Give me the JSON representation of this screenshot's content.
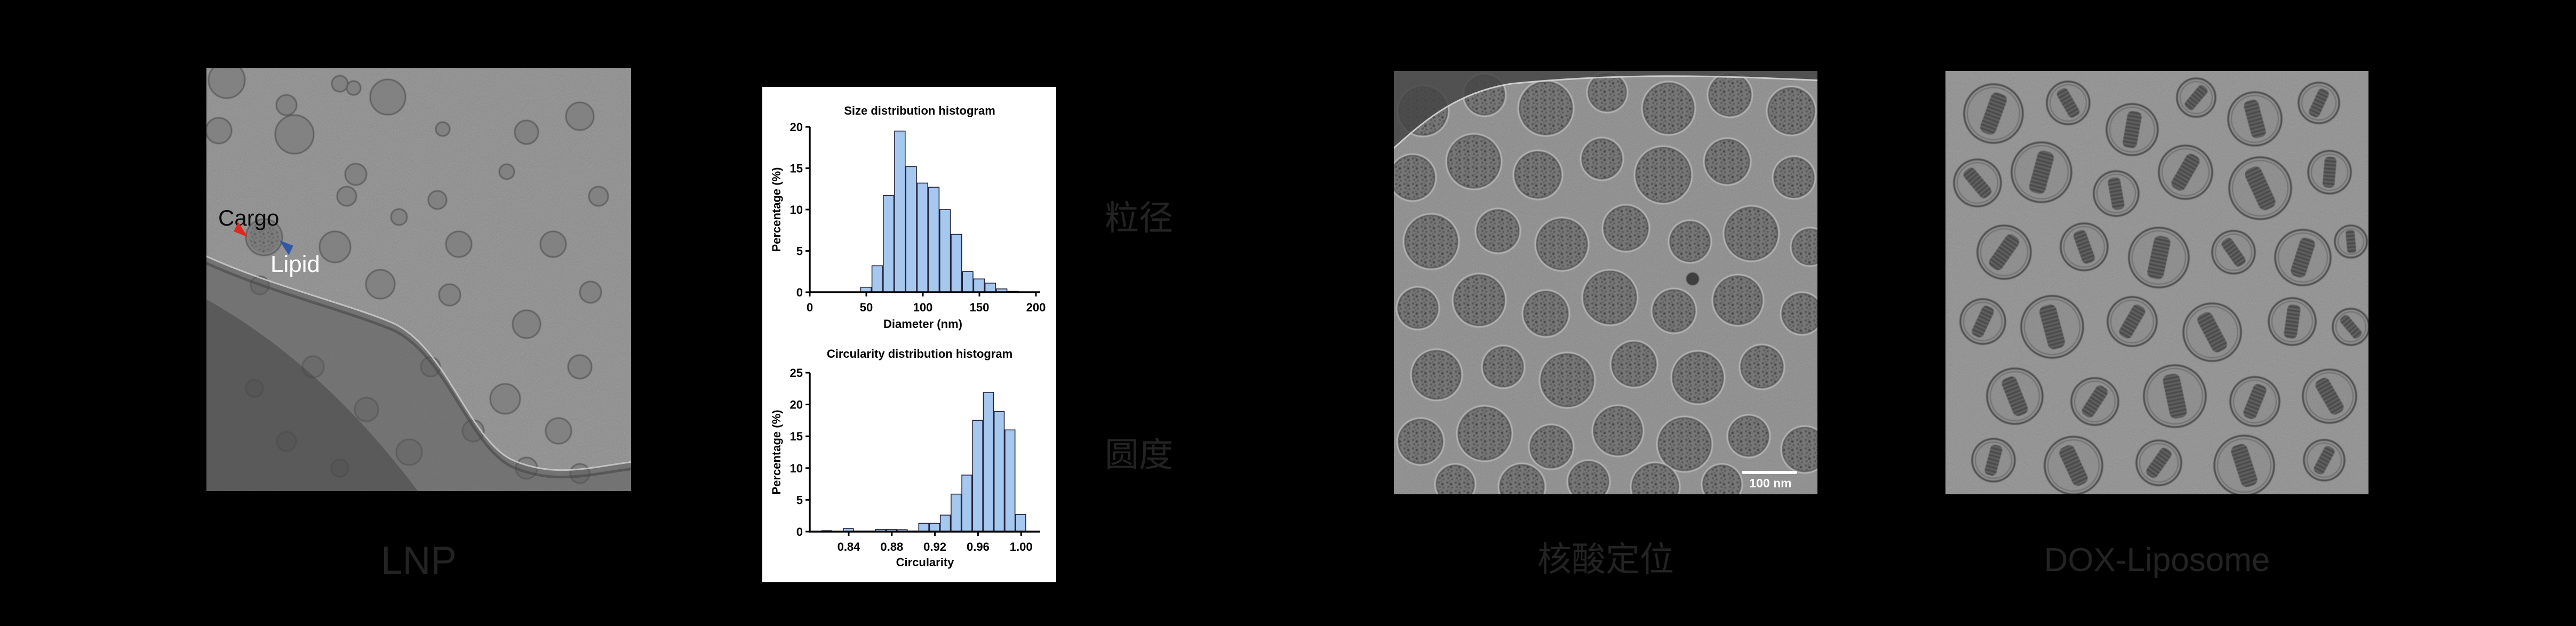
{
  "figure": {
    "background": "#000000",
    "panels": {
      "lnp": {
        "caption": "LNP",
        "annotations": {
          "cargo": "Cargo",
          "lipid": "Lipid"
        },
        "arrow_colors": {
          "cargo": "#e0281e",
          "lipid": "#2d59a8"
        }
      },
      "size_label": "粒径",
      "circularity_label": "圆度",
      "nucleic": {
        "caption": "核酸定位",
        "scale_bar": "100 nm"
      },
      "dox": {
        "caption": "DOX-Liposome"
      }
    },
    "colors": {
      "caption_text": "#232323",
      "micrograph_gray": "#8d8d8d",
      "bar_fill": "#a6c8ef",
      "bar_stroke": "#23233c",
      "scale_bar": "#ffffff"
    }
  },
  "chart_data": [
    {
      "type": "bar",
      "title": "Size distribution histogram",
      "xlabel": "Diameter (nm)",
      "ylabel": "Percentage (%)",
      "xlim": [
        0,
        200
      ],
      "ylim": [
        0,
        20
      ],
      "xticks": [
        0,
        50,
        100,
        150,
        200
      ],
      "yticks": [
        0,
        5,
        10,
        15,
        20
      ],
      "xtick_decimals": 0,
      "bin_width": 10,
      "bin_centers": [
        50,
        60,
        70,
        80,
        90,
        100,
        110,
        120,
        130,
        140,
        150,
        160,
        170,
        180
      ],
      "values": [
        0.6,
        3.2,
        11.7,
        19.5,
        15.2,
        13.2,
        12.7,
        10.0,
        7.0,
        2.5,
        1.6,
        1.1,
        0.4,
        0.1
      ],
      "legend": null,
      "grid": false
    },
    {
      "type": "bar",
      "title": "Circularity distribution histogram",
      "xlabel": "Circularity",
      "ylabel": "Percentage (%)",
      "xlim": [
        0.8,
        1.02
      ],
      "ylim": [
        0,
        25
      ],
      "xticks": [
        0.84,
        0.88,
        0.92,
        0.96,
        1.0
      ],
      "yticks": [
        0,
        5,
        10,
        15,
        20,
        25
      ],
      "xtick_decimals": 2,
      "bin_width": 0.01,
      "bin_centers": [
        0.82,
        0.84,
        0.85,
        0.86,
        0.87,
        0.88,
        0.89,
        0.9,
        0.91,
        0.92,
        0.93,
        0.94,
        0.95,
        0.96,
        0.97,
        0.98,
        0.99,
        1.0
      ],
      "values": [
        0.15,
        0.5,
        0.1,
        0.1,
        0.35,
        0.35,
        0.3,
        0.1,
        1.3,
        1.3,
        2.6,
        5.9,
        8.9,
        17.5,
        21.9,
        18.9,
        16.0,
        2.7
      ],
      "legend": null,
      "grid": false
    }
  ],
  "particles": {
    "lnp": [
      [
        38,
        22,
        34
      ],
      [
        23,
        117,
        24
      ],
      [
        150,
        69,
        19
      ],
      [
        165,
        124,
        36
      ],
      [
        250,
        29,
        15
      ],
      [
        276,
        37,
        13
      ],
      [
        340,
        54,
        33
      ],
      [
        443,
        114,
        13
      ],
      [
        600,
        120,
        22
      ],
      [
        700,
        90,
        26
      ],
      [
        280,
        199,
        20
      ],
      [
        263,
        240,
        18
      ],
      [
        433,
        247,
        17
      ],
      [
        563,
        194,
        14
      ],
      [
        735,
        240,
        18
      ],
      [
        108,
        317,
        34
      ],
      [
        241,
        335,
        29
      ],
      [
        361,
        279,
        15
      ],
      [
        473,
        330,
        24
      ],
      [
        650,
        330,
        24
      ],
      [
        100,
        407,
        17
      ],
      [
        326,
        405,
        27
      ],
      [
        456,
        425,
        20
      ],
      [
        720,
        420,
        20
      ],
      [
        200,
        560,
        20
      ],
      [
        420,
        560,
        18
      ],
      [
        600,
        480,
        26
      ],
      [
        300,
        640,
        22
      ],
      [
        560,
        620,
        28
      ],
      [
        90,
        600,
        16
      ],
      [
        700,
        560,
        22
      ],
      [
        150,
        700,
        18
      ],
      [
        380,
        720,
        24
      ],
      [
        500,
        680,
        20
      ],
      [
        660,
        680,
        24
      ],
      [
        250,
        750,
        16
      ],
      [
        600,
        750,
        20
      ],
      [
        700,
        760,
        18
      ]
    ],
    "nucleic": [
      [
        55,
        75,
        48
      ],
      [
        170,
        45,
        40
      ],
      [
        285,
        70,
        52
      ],
      [
        400,
        40,
        38
      ],
      [
        515,
        70,
        50
      ],
      [
        630,
        45,
        42
      ],
      [
        745,
        75,
        46
      ],
      [
        35,
        200,
        44
      ],
      [
        150,
        170,
        52
      ],
      [
        270,
        195,
        46
      ],
      [
        390,
        165,
        40
      ],
      [
        505,
        195,
        54
      ],
      [
        625,
        170,
        44
      ],
      [
        750,
        200,
        40
      ],
      [
        70,
        320,
        52
      ],
      [
        195,
        300,
        42
      ],
      [
        315,
        325,
        50
      ],
      [
        435,
        295,
        44
      ],
      [
        555,
        320,
        40
      ],
      [
        670,
        305,
        52
      ],
      [
        780,
        330,
        36
      ],
      [
        45,
        445,
        40
      ],
      [
        160,
        430,
        50
      ],
      [
        285,
        455,
        44
      ],
      [
        405,
        425,
        52
      ],
      [
        525,
        450,
        42
      ],
      [
        645,
        430,
        48
      ],
      [
        765,
        455,
        40
      ],
      [
        80,
        570,
        48
      ],
      [
        205,
        555,
        40
      ],
      [
        325,
        580,
        52
      ],
      [
        450,
        550,
        44
      ],
      [
        570,
        575,
        50
      ],
      [
        690,
        555,
        42
      ],
      [
        50,
        695,
        44
      ],
      [
        170,
        680,
        52
      ],
      [
        295,
        705,
        42
      ],
      [
        420,
        675,
        48
      ],
      [
        545,
        700,
        52
      ],
      [
        665,
        685,
        40
      ],
      [
        770,
        710,
        44
      ],
      [
        115,
        775,
        38
      ],
      [
        240,
        780,
        44
      ],
      [
        365,
        770,
        40
      ],
      [
        490,
        780,
        46
      ],
      [
        615,
        775,
        38
      ]
    ],
    "dox": [
      [
        90,
        80,
        55,
        20
      ],
      [
        230,
        60,
        40,
        -30
      ],
      [
        350,
        110,
        48,
        10
      ],
      [
        470,
        50,
        36,
        40
      ],
      [
        580,
        90,
        50,
        -15
      ],
      [
        700,
        60,
        38,
        25
      ],
      [
        60,
        210,
        44,
        -40
      ],
      [
        180,
        190,
        56,
        15
      ],
      [
        320,
        230,
        42,
        -10
      ],
      [
        450,
        190,
        50,
        30
      ],
      [
        590,
        220,
        58,
        -25
      ],
      [
        720,
        190,
        40,
        5
      ],
      [
        110,
        340,
        50,
        35
      ],
      [
        260,
        330,
        44,
        -20
      ],
      [
        400,
        350,
        56,
        12
      ],
      [
        540,
        340,
        40,
        -35
      ],
      [
        670,
        350,
        52,
        18
      ],
      [
        760,
        320,
        30,
        -5
      ],
      [
        70,
        470,
        42,
        25
      ],
      [
        200,
        480,
        58,
        -15
      ],
      [
        350,
        470,
        46,
        30
      ],
      [
        500,
        490,
        54,
        -28
      ],
      [
        650,
        470,
        44,
        8
      ],
      [
        760,
        480,
        34,
        -40
      ],
      [
        130,
        610,
        52,
        -22
      ],
      [
        280,
        620,
        44,
        33
      ],
      [
        430,
        610,
        58,
        -12
      ],
      [
        580,
        620,
        46,
        22
      ],
      [
        720,
        610,
        50,
        -30
      ],
      [
        90,
        730,
        40,
        15
      ],
      [
        240,
        740,
        54,
        -25
      ],
      [
        400,
        735,
        42,
        35
      ],
      [
        560,
        740,
        56,
        -18
      ],
      [
        710,
        730,
        38,
        28
      ]
    ]
  }
}
